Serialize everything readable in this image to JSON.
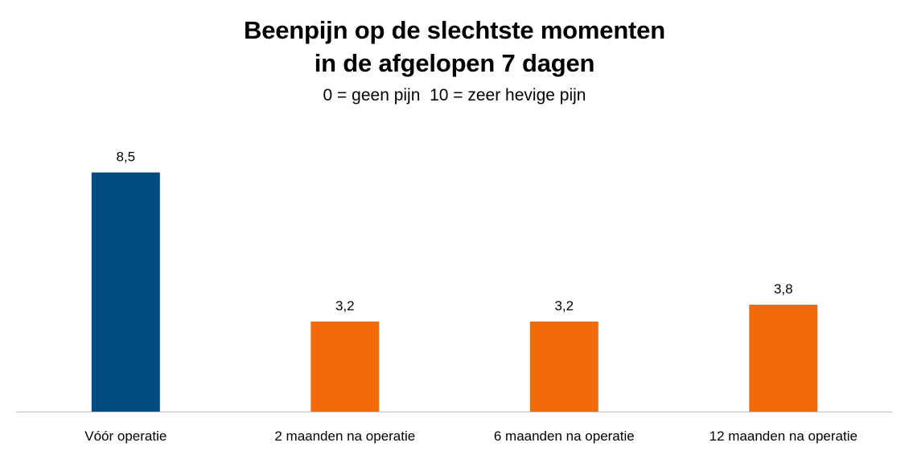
{
  "chart_data": {
    "type": "bar",
    "title": [
      "Beenpijn op de slechtste momenten",
      "in de afgelopen 7 dagen"
    ],
    "subtitle": "0 = geen pijn  10 = zeer hevige pijn",
    "categories": [
      "Vóór operatie",
      "2 maanden na operatie",
      "6 maanden na operatie",
      "12 maanden na operatie"
    ],
    "values": [
      8.5,
      3.2,
      3.2,
      3.8
    ],
    "value_labels": [
      "8,5",
      "3,2",
      "3,2",
      "3,8"
    ],
    "bar_colors": [
      "#004C80",
      "#F26A0A",
      "#F26A0A",
      "#F26A0A"
    ],
    "ylim": [
      0,
      10
    ],
    "grid": false,
    "legend": "none",
    "xlabel": "",
    "ylabel": ""
  },
  "colors": {
    "axis": "#BFBFBF",
    "before": "#004C80",
    "after": "#F26A0A"
  }
}
